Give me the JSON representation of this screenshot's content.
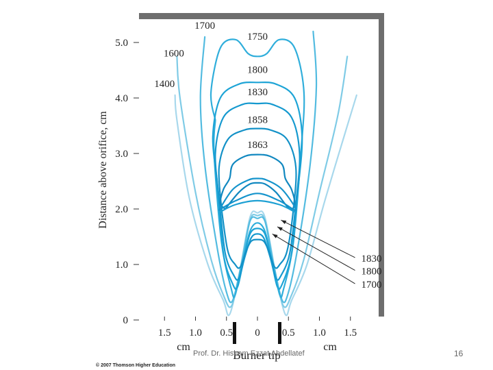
{
  "chart_data": {
    "type": "line",
    "ylabel": "Distance above orifice, cm",
    "xlabel_left": "cm",
    "xlabel_right": "cm",
    "xlabel_center": "Burner tip",
    "ylim": [
      0,
      5.5
    ],
    "xlim": [
      -2.0,
      2.0
    ],
    "x_ticks": [
      "1.5",
      "1.0",
      "0.5",
      "0",
      "0.5",
      "1.0",
      "1.5"
    ],
    "y_ticks": [
      "0",
      "1.0",
      "2.0",
      "3.0",
      "4.0",
      "5.0"
    ],
    "series": [
      {
        "name": "1400",
        "color": "#a8d8ec",
        "points": [
          [
            -1.33,
            4.05
          ],
          [
            -1.3,
            3.6
          ],
          [
            -1.1,
            2.2
          ],
          [
            -0.8,
            1.0
          ],
          [
            -0.55,
            0.35
          ],
          [
            -0.45,
            0.1
          ],
          [
            -0.3,
            0.8
          ],
          [
            -0.12,
            1.85
          ],
          [
            0,
            1.93
          ],
          [
            0.12,
            1.85
          ],
          [
            0.3,
            0.8
          ],
          [
            0.45,
            0.1
          ],
          [
            0.55,
            0.35
          ],
          [
            0.8,
            1.0
          ],
          [
            1.1,
            2.2
          ],
          [
            1.45,
            3.5
          ],
          [
            1.6,
            4.05
          ]
        ]
      },
      {
        "name": "1600",
        "color": "#7fcbe6",
        "points": [
          [
            -1.3,
            4.75
          ],
          [
            -1.25,
            4.0
          ],
          [
            -1.0,
            2.3
          ],
          [
            -0.75,
            1.1
          ],
          [
            -0.55,
            0.45
          ],
          [
            -0.42,
            0.25
          ],
          [
            -0.28,
            0.9
          ],
          [
            -0.12,
            1.8
          ],
          [
            0,
            1.88
          ],
          [
            0.12,
            1.8
          ],
          [
            0.28,
            0.9
          ],
          [
            0.42,
            0.25
          ],
          [
            0.55,
            0.45
          ],
          [
            0.75,
            1.1
          ],
          [
            1.0,
            2.3
          ],
          [
            1.3,
            3.7
          ],
          [
            1.45,
            4.75
          ]
        ]
      },
      {
        "name": "1700",
        "color": "#52bbe0",
        "points": [
          [
            -0.85,
            5.1
          ],
          [
            -0.92,
            4.0
          ],
          [
            -0.85,
            2.8
          ],
          [
            -0.65,
            1.3
          ],
          [
            -0.5,
            0.5
          ],
          [
            -0.4,
            0.35
          ],
          [
            -0.26,
            1.0
          ],
          [
            -0.12,
            1.78
          ],
          [
            0,
            1.83
          ],
          [
            0.12,
            1.78
          ],
          [
            0.26,
            1.0
          ],
          [
            0.4,
            0.35
          ],
          [
            0.5,
            0.5
          ],
          [
            0.65,
            1.3
          ],
          [
            0.85,
            2.8
          ],
          [
            0.95,
            4.2
          ],
          [
            0.9,
            5.2
          ]
        ]
      },
      {
        "name": "1750",
        "color": "#30aedb",
        "points": [
          [
            -0.68,
            3.6
          ],
          [
            -0.75,
            4.1
          ],
          [
            -0.6,
            4.9
          ],
          [
            -0.35,
            5.05
          ],
          [
            -0.15,
            4.8
          ],
          [
            0,
            4.75
          ],
          [
            0.15,
            4.8
          ],
          [
            0.35,
            5.05
          ],
          [
            0.6,
            4.9
          ],
          [
            0.75,
            4.1
          ],
          [
            0.7,
            3.0
          ],
          [
            0.58,
            1.4
          ],
          [
            0.42,
            0.55
          ],
          [
            0.36,
            0.45
          ],
          [
            0.24,
            1.05
          ],
          [
            0.12,
            1.6
          ],
          [
            0,
            1.75
          ],
          [
            -0.12,
            1.6
          ],
          [
            -0.24,
            1.05
          ],
          [
            -0.36,
            0.45
          ],
          [
            -0.42,
            0.55
          ],
          [
            -0.58,
            1.4
          ],
          [
            -0.7,
            3.0
          ],
          [
            -0.68,
            3.6
          ]
        ]
      },
      {
        "name": "1800",
        "color": "#1da4d6",
        "points": [
          [
            -0.65,
            2.5
          ],
          [
            -0.72,
            3.3
          ],
          [
            -0.6,
            4.0
          ],
          [
            -0.3,
            4.25
          ],
          [
            0,
            4.28
          ],
          [
            0.3,
            4.25
          ],
          [
            0.6,
            4.0
          ],
          [
            0.72,
            3.3
          ],
          [
            0.65,
            2.3
          ],
          [
            0.55,
            1.2
          ],
          [
            0.4,
            0.65
          ],
          [
            0.32,
            0.6
          ],
          [
            0.22,
            1.1
          ],
          [
            0.12,
            1.55
          ],
          [
            0,
            1.65
          ],
          [
            -0.12,
            1.55
          ],
          [
            -0.22,
            1.1
          ],
          [
            -0.32,
            0.6
          ],
          [
            -0.4,
            0.65
          ],
          [
            -0.55,
            1.2
          ],
          [
            -0.65,
            2.5
          ]
        ]
      },
      {
        "name": "1830",
        "color": "#1599cf",
        "points": [
          [
            -0.62,
            2.2
          ],
          [
            -0.68,
            3.0
          ],
          [
            -0.55,
            3.65
          ],
          [
            -0.25,
            3.88
          ],
          [
            0,
            3.9
          ],
          [
            0.25,
            3.88
          ],
          [
            0.55,
            3.65
          ],
          [
            0.68,
            3.0
          ],
          [
            0.62,
            2.1
          ],
          [
            0.52,
            1.2
          ],
          [
            0.38,
            0.8
          ],
          [
            0.3,
            0.75
          ],
          [
            0.2,
            1.15
          ],
          [
            0.1,
            1.48
          ],
          [
            0,
            1.55
          ],
          [
            -0.1,
            1.48
          ],
          [
            -0.2,
            1.15
          ],
          [
            -0.3,
            0.75
          ],
          [
            -0.38,
            0.8
          ],
          [
            -0.52,
            1.2
          ],
          [
            -0.62,
            2.2
          ]
        ]
      },
      {
        "name": "1858",
        "color": "#1391c7",
        "points": [
          [
            -0.58,
            2.0
          ],
          [
            -0.62,
            2.75
          ],
          [
            -0.48,
            3.25
          ],
          [
            -0.22,
            3.42
          ],
          [
            0,
            3.45
          ],
          [
            0.22,
            3.42
          ],
          [
            0.48,
            3.25
          ],
          [
            0.62,
            2.75
          ],
          [
            0.58,
            2.0
          ],
          [
            0.48,
            1.25
          ],
          [
            0.36,
            1.0
          ],
          [
            0.28,
            0.95
          ],
          [
            0.18,
            1.25
          ],
          [
            0.1,
            1.42
          ],
          [
            0,
            1.45
          ],
          [
            -0.1,
            1.42
          ],
          [
            -0.18,
            1.25
          ],
          [
            -0.28,
            0.95
          ],
          [
            -0.36,
            1.0
          ],
          [
            -0.48,
            1.25
          ],
          [
            -0.58,
            2.0
          ]
        ]
      },
      {
        "name": "1863",
        "color": "#1188c0",
        "points": [
          [
            -0.52,
            2.0
          ],
          [
            -0.6,
            2.1
          ],
          [
            -0.55,
            2.35
          ],
          [
            -0.45,
            2.55
          ],
          [
            -0.4,
            2.8
          ],
          [
            -0.2,
            2.95
          ],
          [
            0,
            2.98
          ],
          [
            0.2,
            2.95
          ],
          [
            0.4,
            2.8
          ],
          [
            0.45,
            2.55
          ],
          [
            0.55,
            2.35
          ],
          [
            0.6,
            2.1
          ],
          [
            0.52,
            2.0
          ],
          [
            0.3,
            2.3
          ],
          [
            0.12,
            2.45
          ],
          [
            0,
            2.47
          ],
          [
            -0.12,
            2.45
          ],
          [
            -0.3,
            2.3
          ],
          [
            -0.52,
            2.0
          ]
        ]
      },
      {
        "name": "",
        "color": "#1594cc",
        "points": [
          [
            -0.62,
            1.98
          ],
          [
            -0.4,
            2.35
          ],
          [
            -0.15,
            2.52
          ],
          [
            0,
            2.55
          ],
          [
            0.15,
            2.52
          ],
          [
            0.4,
            2.35
          ],
          [
            0.62,
            1.98
          ],
          [
            0.35,
            2.15
          ],
          [
            0,
            2.28
          ],
          [
            -0.35,
            2.15
          ],
          [
            -0.62,
            1.98
          ]
        ]
      },
      {
        "name": "",
        "color": "#1da0d3",
        "points": [
          [
            -0.6,
            1.95
          ],
          [
            -0.35,
            2.08
          ],
          [
            0,
            2.15
          ],
          [
            0.35,
            2.08
          ],
          [
            0.6,
            1.95
          ]
        ]
      }
    ],
    "annotations": [
      {
        "text": "1700",
        "x": -0.85,
        "y": 5.25
      },
      {
        "text": "1750",
        "x": 0.0,
        "y": 5.05
      },
      {
        "text": "1600",
        "x": -1.35,
        "y": 4.75
      },
      {
        "text": "1400",
        "x": -1.5,
        "y": 4.2
      },
      {
        "text": "1800",
        "x": 0.0,
        "y": 4.45
      },
      {
        "text": "1830",
        "x": 0.0,
        "y": 4.05
      },
      {
        "text": "1858",
        "x": 0.0,
        "y": 3.55
      },
      {
        "text": "1863",
        "x": 0.0,
        "y": 3.1
      }
    ],
    "callouts": [
      {
        "text": "1830",
        "x": 1.84,
        "y": 1.05,
        "target": [
          0.38,
          1.8
        ]
      },
      {
        "text": "1800",
        "x": 1.84,
        "y": 0.82,
        "target": [
          0.32,
          1.68
        ]
      },
      {
        "text": "1700",
        "x": 1.84,
        "y": 0.58,
        "target": [
          0.24,
          1.55
        ]
      }
    ]
  },
  "footer": {
    "author": "Prof. Dr. Hisham Ezzat Abdellatef",
    "page": "16",
    "copyright": "© 2007 Thomson Higher Education"
  }
}
